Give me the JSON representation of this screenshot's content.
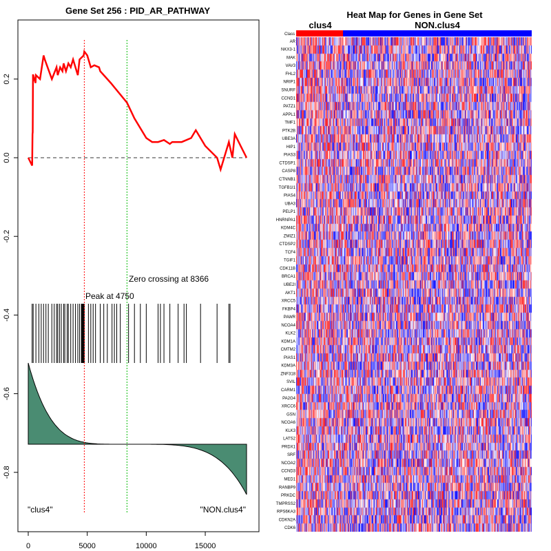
{
  "left_panel": {
    "title": "Gene Set  256 : PID_AR_PATHWAY",
    "x_ticks": [
      "0",
      "5000",
      "10000",
      "15000"
    ],
    "y_ticks": [
      "0.2",
      "0.0",
      "-0.2",
      "-0.4",
      "-0.6",
      "-0.8"
    ],
    "peak_label": "Peak at 4750",
    "zero_label": "Zero crossing at 8366",
    "left_class_label": "\"clus4\"",
    "right_class_label": "\"NON.clus4\""
  },
  "right_panel": {
    "title": "Heat Map for Genes in Gene Set",
    "class_row_label": "Class",
    "class_a_label": "clus4",
    "class_b_label": "NON.clus4",
    "genes": [
      "AR",
      "NKX3-1",
      "MAK",
      "VAV3",
      "FHL2",
      "NRIP1",
      "SNURF",
      "CCND1",
      "PATZ1",
      "APPL1",
      "TMF1",
      "PTK2B",
      "UBE3A",
      "HIP1",
      "PIAS3",
      "CTDSP1",
      "CASP8",
      "CTNNB1",
      "TGFB1I1",
      "PIAS4",
      "UBA3",
      "PELP1",
      "HNRNPA1",
      "KDM4C",
      "ZMIZ1",
      "CTDSP2",
      "TCF4",
      "TGIF1",
      "CDK11B",
      "BRCA1",
      "UBE2I",
      "AKT1",
      "XRCC5",
      "FKBP4",
      "PAWR",
      "NCOA4",
      "KLK2",
      "KDM1A",
      "CMTM2",
      "PIAS1",
      "KDM3A",
      "ZNF318",
      "SVIL",
      "CARM1",
      "PA2G4",
      "XRCC6",
      "GSN",
      "NCOA6",
      "KLK3",
      "LATS2",
      "PRDX1",
      "SRF",
      "NCOA2",
      "CCND3",
      "MED1",
      "RANBP9",
      "PRKDC",
      "TMPRSS2",
      "RPS6KA3",
      "CDKN2A",
      "CDK6"
    ]
  },
  "colors": {
    "es_curve": "#ff0000",
    "peak_line": "#ff0000",
    "zero_line": "#00bb00",
    "metric_fill": "#4a8c72",
    "class_a": "#ff0000",
    "class_b": "#0000ff"
  },
  "chart_data": [
    {
      "type": "line",
      "title": "Gene Set  256 : PID_AR_PATHWAY",
      "xlim": [
        0,
        18600
      ],
      "ylim": [
        -0.9,
        0.3
      ],
      "peak_position": 4750,
      "zero_crossing": 8366,
      "series": [
        {
          "x": [
            0,
            330,
            360,
            380,
            400,
            420,
            620,
            650,
            1000,
            1300,
            1400,
            2000,
            2400,
            2500,
            2700,
            2900,
            3000,
            3200,
            3400,
            3600,
            3800,
            4200,
            4350,
            4700,
            4750,
            5000,
            5300,
            5600,
            6000,
            6100,
            6400,
            7000,
            8366,
            9000,
            10000,
            10500,
            11000,
            11500,
            12000,
            12200,
            13000,
            13800,
            14200,
            15000,
            16000,
            16300,
            17000,
            17300,
            17500,
            18000,
            18500
          ],
          "y": [
            0.0,
            -0.02,
            0.06,
            0.065,
            0.21,
            0.21,
            0.19,
            0.21,
            0.2,
            0.26,
            0.25,
            0.2,
            0.23,
            0.21,
            0.23,
            0.22,
            0.24,
            0.22,
            0.24,
            0.23,
            0.25,
            0.21,
            0.25,
            0.26,
            0.27,
            0.26,
            0.23,
            0.235,
            0.23,
            0.22,
            0.21,
            0.19,
            0.14,
            0.1,
            0.05,
            0.04,
            0.04,
            0.045,
            0.035,
            0.04,
            0.04,
            0.05,
            0.07,
            0.03,
            0.0,
            -0.03,
            0.04,
            0.0,
            0.06,
            0.03,
            0.0
          ]
        }
      ],
      "hit_positions": [
        330,
        420,
        650,
        900,
        1100,
        1300,
        1500,
        1700,
        2000,
        2200,
        2400,
        2500,
        2650,
        2800,
        3000,
        3100,
        3300,
        3400,
        3600,
        3800,
        4000,
        4200,
        4350,
        4500,
        4550,
        4600,
        4650,
        4700,
        4750,
        5100,
        5300,
        5500,
        5700,
        6100,
        6400,
        6700,
        7100,
        7300,
        7500,
        7800,
        8500,
        9000,
        9500,
        10000,
        11000,
        11200,
        11500,
        12000,
        12700,
        13200,
        13400,
        14600,
        16000,
        17000,
        17100
      ],
      "ranked_metric_min": -0.27,
      "ranked_metric_max": 0.33
    },
    {
      "type": "heatmap",
      "title": "Heat Map for Genes in Gene Set",
      "rows": 61,
      "class_split_fraction": 0.2
    }
  ]
}
